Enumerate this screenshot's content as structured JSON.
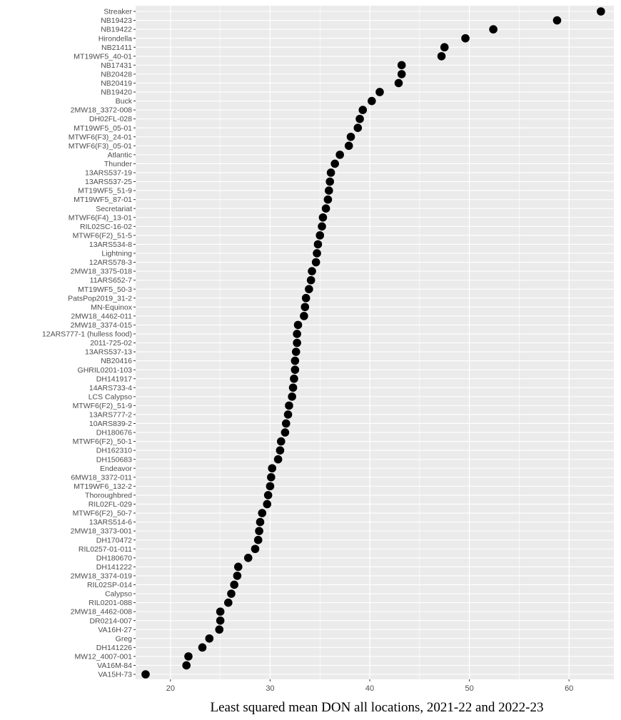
{
  "chart_data": {
    "type": "scatter",
    "title": "",
    "xlabel": "Least squared mean DON all locations, 2021-22 and 2022-23",
    "ylabel": "",
    "xlim": [
      16.5,
      64.5
    ],
    "xticks": [
      20,
      30,
      40,
      50,
      60
    ],
    "grid": true,
    "legend": "none",
    "colors": {
      "panel": "#ebebeb",
      "grid": "#ffffff",
      "point": "#000000",
      "tick_text": "#4d4d4d"
    },
    "points": [
      {
        "label": "Streaker",
        "value": 63.2
      },
      {
        "label": "NB19423",
        "value": 58.8
      },
      {
        "label": "NB19422",
        "value": 52.4
      },
      {
        "label": "Hirondella",
        "value": 49.6
      },
      {
        "label": "NB21411",
        "value": 47.5
      },
      {
        "label": "MT19WF5_40-01",
        "value": 47.2
      },
      {
        "label": "NB17431",
        "value": 43.2
      },
      {
        "label": "NB20428",
        "value": 43.2
      },
      {
        "label": "NB20419",
        "value": 42.9
      },
      {
        "label": "NB19420",
        "value": 41.0
      },
      {
        "label": "Buck",
        "value": 40.2
      },
      {
        "label": "2MW18_3372-008",
        "value": 39.3
      },
      {
        "label": "DH02FL-028",
        "value": 39.0
      },
      {
        "label": "MT19WF5_05-01",
        "value": 38.8
      },
      {
        "label": "MTWF6(F3)_24-01",
        "value": 38.1
      },
      {
        "label": "MTWF6(F3)_05-01",
        "value": 37.9
      },
      {
        "label": "Atlantic",
        "value": 37.0
      },
      {
        "label": "Thunder",
        "value": 36.5
      },
      {
        "label": "13ARS537-19",
        "value": 36.1
      },
      {
        "label": "13ARS537-25",
        "value": 36.0
      },
      {
        "label": "MT19WF5_51-9",
        "value": 35.9
      },
      {
        "label": "MT19WF5_87-01",
        "value": 35.8
      },
      {
        "label": "Secretariat",
        "value": 35.6
      },
      {
        "label": "MTWF6(F4)_13-01",
        "value": 35.3
      },
      {
        "label": "RIL02SC-16-02",
        "value": 35.2
      },
      {
        "label": "MTWF6(F2)_51-5",
        "value": 35.0
      },
      {
        "label": "13ARS534-8",
        "value": 34.8
      },
      {
        "label": "Lightning",
        "value": 34.7
      },
      {
        "label": "12ARS578-3",
        "value": 34.6
      },
      {
        "label": "2MW18_3375-018",
        "value": 34.2
      },
      {
        "label": "11ARS652-7",
        "value": 34.1
      },
      {
        "label": "MT19WF5_50-3",
        "value": 33.9
      },
      {
        "label": "PatsPop2019_31-2",
        "value": 33.6
      },
      {
        "label": "MN-Equinox",
        "value": 33.5
      },
      {
        "label": "2MW18_4462-011",
        "value": 33.4
      },
      {
        "label": "2MW18_3374-015",
        "value": 32.8
      },
      {
        "label": "12ARS777-1 (hulless food)",
        "value": 32.7
      },
      {
        "label": "2011-725-02",
        "value": 32.7
      },
      {
        "label": "13ARS537-13",
        "value": 32.6
      },
      {
        "label": "NB20416",
        "value": 32.5
      },
      {
        "label": "GHRIL0201-103",
        "value": 32.5
      },
      {
        "label": "DH141917",
        "value": 32.4
      },
      {
        "label": "14ARS733-4",
        "value": 32.3
      },
      {
        "label": "LCS Calypso",
        "value": 32.2
      },
      {
        "label": "MTWF6(F2)_51-9",
        "value": 31.9
      },
      {
        "label": "13ARS777-2",
        "value": 31.8
      },
      {
        "label": "10ARS839-2",
        "value": 31.6
      },
      {
        "label": "DH180676",
        "value": 31.5
      },
      {
        "label": "MTWF6(F2)_50-1",
        "value": 31.1
      },
      {
        "label": "DH162310",
        "value": 31.0
      },
      {
        "label": "DH150683",
        "value": 30.8
      },
      {
        "label": "Endeavor",
        "value": 30.2
      },
      {
        "label": "6MW18_3372-011",
        "value": 30.1
      },
      {
        "label": "MT19WF6_132-2",
        "value": 30.0
      },
      {
        "label": "Thoroughbred",
        "value": 29.8
      },
      {
        "label": "RIL02FL-029",
        "value": 29.7
      },
      {
        "label": "MTWF6(F2)_50-7",
        "value": 29.2
      },
      {
        "label": "13ARS514-6",
        "value": 29.0
      },
      {
        "label": "2MW18_3373-001",
        "value": 28.9
      },
      {
        "label": "DH170472",
        "value": 28.8
      },
      {
        "label": "RIL0257-01-011",
        "value": 28.5
      },
      {
        "label": "DH180670",
        "value": 27.8
      },
      {
        "label": "DH141222",
        "value": 26.8
      },
      {
        "label": "2MW18_3374-019",
        "value": 26.7
      },
      {
        "label": "RIL02SP-014",
        "value": 26.4
      },
      {
        "label": "Calypso",
        "value": 26.1
      },
      {
        "label": "RIL0201-088",
        "value": 25.8
      },
      {
        "label": "2MW18_4462-008",
        "value": 25.0
      },
      {
        "label": "DR0214-007",
        "value": 25.0
      },
      {
        "label": "VA16H-27",
        "value": 24.9
      },
      {
        "label": "Greg",
        "value": 23.9
      },
      {
        "label": "DH141226",
        "value": 23.2
      },
      {
        "label": "MW12_4007-001",
        "value": 21.8
      },
      {
        "label": "VA16M-84",
        "value": 21.6
      },
      {
        "label": "VA15H-73",
        "value": 17.5
      }
    ]
  }
}
